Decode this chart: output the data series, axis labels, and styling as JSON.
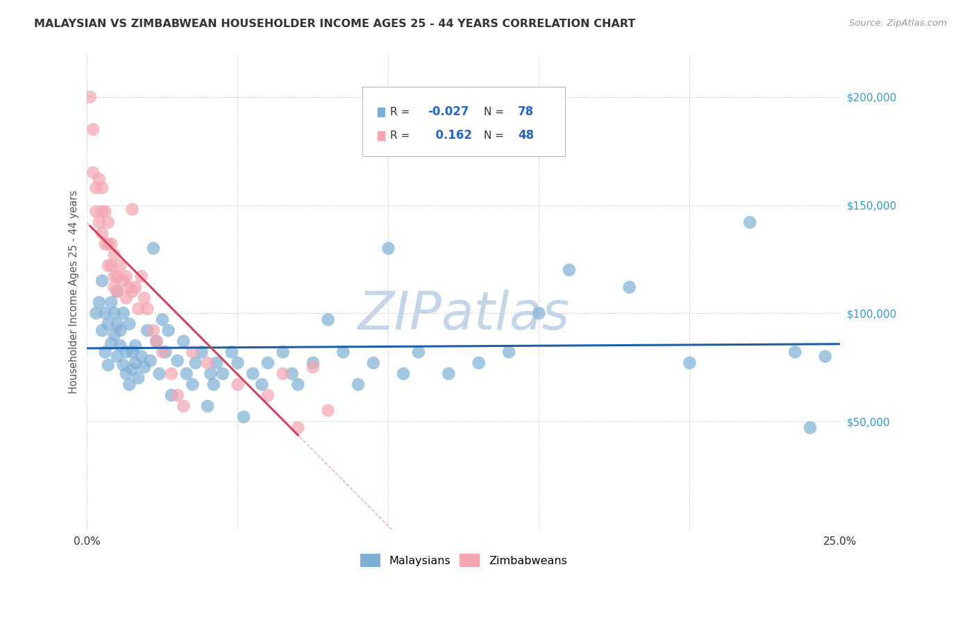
{
  "title": "MALAYSIAN VS ZIMBABWEAN HOUSEHOLDER INCOME AGES 25 - 44 YEARS CORRELATION CHART",
  "source": "Source: ZipAtlas.com",
  "ylabel": "Householder Income Ages 25 - 44 years",
  "xlim": [
    0.0,
    0.25
  ],
  "ylim": [
    0,
    220000
  ],
  "yticks": [
    0,
    50000,
    100000,
    150000,
    200000
  ],
  "xticks": [
    0.0,
    0.05,
    0.1,
    0.15,
    0.2,
    0.25
  ],
  "malaysian_color": "#7EB0D5",
  "zimbabwean_color": "#F4A5B0",
  "regression_blue_color": "#1B5EA8",
  "regression_pink_color": "#D44060",
  "watermark_color": "#C5D5E8",
  "background_color": "#FFFFFF",
  "grid_color": "#CCCCCC",
  "malaysian_x": [
    0.003,
    0.004,
    0.005,
    0.005,
    0.006,
    0.006,
    0.007,
    0.007,
    0.008,
    0.008,
    0.009,
    0.009,
    0.01,
    0.01,
    0.01,
    0.011,
    0.011,
    0.012,
    0.012,
    0.013,
    0.013,
    0.014,
    0.014,
    0.015,
    0.015,
    0.016,
    0.016,
    0.017,
    0.018,
    0.019,
    0.02,
    0.021,
    0.022,
    0.023,
    0.024,
    0.025,
    0.026,
    0.027,
    0.028,
    0.03,
    0.032,
    0.033,
    0.035,
    0.036,
    0.038,
    0.04,
    0.041,
    0.042,
    0.043,
    0.045,
    0.048,
    0.05,
    0.052,
    0.055,
    0.058,
    0.06,
    0.065,
    0.068,
    0.07,
    0.075,
    0.08,
    0.085,
    0.09,
    0.095,
    0.1,
    0.105,
    0.11,
    0.12,
    0.13,
    0.14,
    0.15,
    0.16,
    0.18,
    0.2,
    0.22,
    0.235,
    0.24,
    0.245
  ],
  "malaysian_y": [
    100000,
    105000,
    92000,
    115000,
    100000,
    82000,
    95000,
    76000,
    105000,
    86000,
    100000,
    90000,
    110000,
    95000,
    80000,
    85000,
    92000,
    76000,
    100000,
    82000,
    72000,
    95000,
    67000,
    82000,
    74000,
    85000,
    77000,
    70000,
    80000,
    75000,
    92000,
    78000,
    130000,
    87000,
    72000,
    97000,
    82000,
    92000,
    62000,
    78000,
    87000,
    72000,
    67000,
    77000,
    82000,
    57000,
    72000,
    67000,
    77000,
    72000,
    82000,
    77000,
    52000,
    72000,
    67000,
    77000,
    82000,
    72000,
    67000,
    77000,
    97000,
    82000,
    67000,
    77000,
    130000,
    72000,
    82000,
    72000,
    77000,
    82000,
    100000,
    120000,
    112000,
    77000,
    142000,
    82000,
    47000,
    80000
  ],
  "zimbabwean_x": [
    0.001,
    0.002,
    0.002,
    0.003,
    0.003,
    0.004,
    0.004,
    0.005,
    0.005,
    0.005,
    0.006,
    0.006,
    0.007,
    0.007,
    0.007,
    0.008,
    0.008,
    0.009,
    0.009,
    0.009,
    0.01,
    0.01,
    0.011,
    0.012,
    0.013,
    0.013,
    0.014,
    0.015,
    0.015,
    0.016,
    0.017,
    0.018,
    0.019,
    0.02,
    0.022,
    0.023,
    0.025,
    0.028,
    0.03,
    0.032,
    0.035,
    0.04,
    0.05,
    0.06,
    0.065,
    0.07,
    0.075,
    0.08
  ],
  "zimbabwean_y": [
    200000,
    185000,
    165000,
    158000,
    147000,
    162000,
    142000,
    158000,
    147000,
    137000,
    147000,
    132000,
    142000,
    132000,
    122000,
    132000,
    122000,
    127000,
    117000,
    112000,
    117000,
    110000,
    122000,
    115000,
    117000,
    107000,
    112000,
    148000,
    110000,
    112000,
    102000,
    117000,
    107000,
    102000,
    92000,
    87000,
    82000,
    72000,
    62000,
    57000,
    82000,
    77000,
    67000,
    62000,
    72000,
    47000,
    75000,
    55000
  ]
}
